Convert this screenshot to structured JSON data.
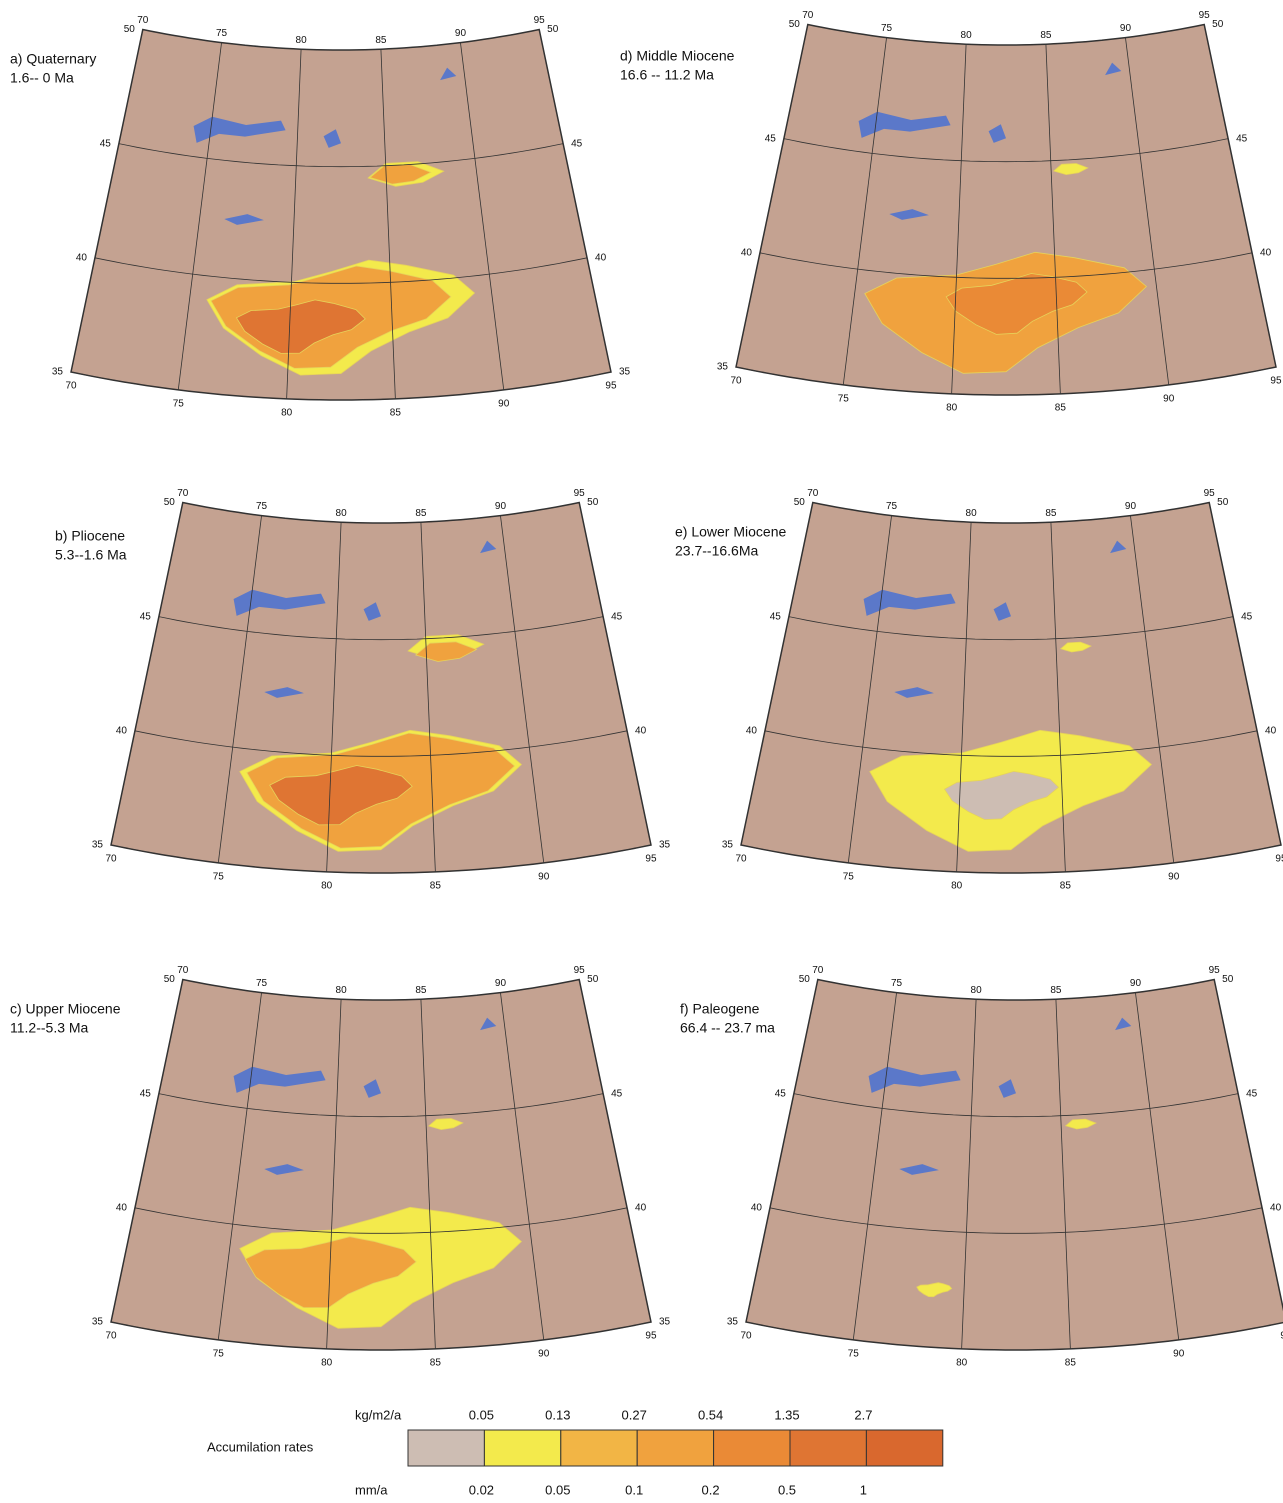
{
  "panels": [
    {
      "title": "a) Quaternary",
      "age": "1.6-- 0 Ma"
    },
    {
      "title": "b) Pliocene",
      "age": "5.3--1.6 Ma"
    },
    {
      "title": "c) Upper Miocene",
      "age": "11.2--5.3 Ma"
    },
    {
      "title": "d) Middle Miocene",
      "age": "16.6 -- 11.2 Ma"
    },
    {
      "title": "e) Lower Miocene",
      "age": "23.7--16.6Ma"
    },
    {
      "title": "f) Paleogene",
      "age": "66.4 -- 23.7 ma"
    }
  ],
  "graticule": {
    "lon": [
      70,
      75,
      80,
      85,
      90,
      95
    ],
    "lat": [
      35,
      40,
      45,
      50
    ]
  },
  "legend": {
    "title": "Accumilation rates",
    "top_unit": "kg/m2/a",
    "top_values": [
      0.05,
      0.13,
      0.27,
      0.54,
      1.35,
      2.7
    ],
    "bottom_unit": "mm/a",
    "bottom_values": [
      0.02,
      0.05,
      0.1,
      0.2,
      0.5,
      1
    ],
    "colors": [
      "#cdbdb3",
      "#f3ea4c",
      "#f2b545",
      "#f0a23e",
      "#ea8a36",
      "#df7533",
      "#d9682e"
    ]
  }
}
